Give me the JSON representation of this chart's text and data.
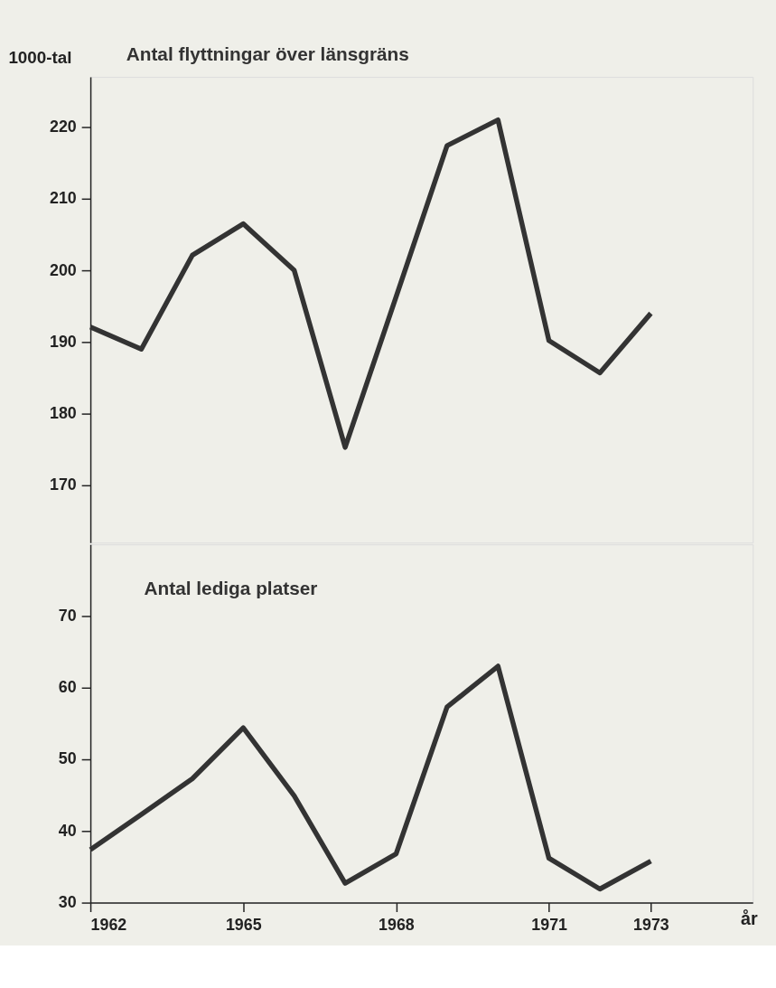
{
  "chart_data": [
    {
      "type": "line",
      "ylabel": "1000-tal",
      "x": [
        1962,
        1963,
        1964,
        1965,
        1966,
        1967,
        1968,
        1969,
        1970,
        1971,
        1972,
        1973
      ],
      "xlim": [
        1962,
        1975
      ],
      "xticks": [
        1962,
        1965,
        1968,
        1971,
        1973
      ],
      "ylim": [
        162,
        227
      ],
      "yticks": [
        170,
        180,
        190,
        200,
        210,
        220
      ],
      "grid": false,
      "marker": "none",
      "line_style": "solid",
      "tick_labels": "y",
      "series": [
        {
          "name": "Antal flyttningar över länsgräns",
          "color": "#333333",
          "values": [
            192.1,
            189.0,
            202.1,
            206.5,
            200.0,
            175.3,
            196.3,
            217.4,
            221.0,
            190.2,
            185.7,
            194.0
          ]
        }
      ]
    },
    {
      "type": "line",
      "xlabel": "år",
      "x": [
        1962,
        1963,
        1964,
        1965,
        1966,
        1967,
        1968,
        1969,
        1970,
        1971,
        1972,
        1973
      ],
      "xlim": [
        1962,
        1975
      ],
      "xticks": [
        1962,
        1965,
        1968,
        1971,
        1973
      ],
      "ylim": [
        30,
        80
      ],
      "yticks": [
        30,
        40,
        50,
        60,
        70
      ],
      "grid": false,
      "marker": "none",
      "line_style": "solid",
      "series": [
        {
          "name": "Antal lediga platser",
          "color": "#333333",
          "values": [
            37.4,
            42.3,
            47.3,
            54.4,
            44.9,
            32.7,
            36.8,
            57.3,
            63.0,
            36.2,
            31.9,
            35.8
          ]
        }
      ]
    }
  ]
}
